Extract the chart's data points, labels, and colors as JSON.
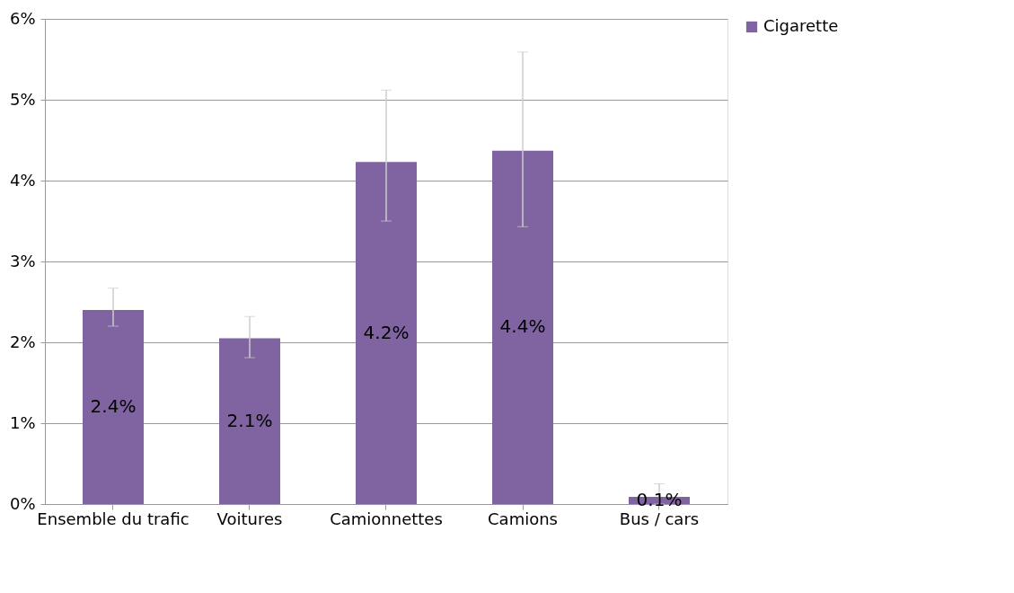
{
  "chart_data": {
    "type": "bar",
    "categories": [
      "Ensemble du trafic",
      "Voitures",
      "Camionnettes",
      "Camions",
      "Bus / cars"
    ],
    "series": [
      {
        "name": "Cigarette",
        "color": "#8064a2",
        "values": [
          2.4,
          2.05,
          4.23,
          4.37,
          0.09
        ],
        "errors": [
          [
            2.2,
            2.67
          ],
          [
            1.81,
            2.32
          ],
          [
            3.5,
            5.12
          ],
          [
            3.43,
            5.59
          ],
          [
            0.0,
            0.25
          ]
        ]
      }
    ],
    "value_labels": [
      "2.4%",
      "2.1%",
      "4.2%",
      "4.4%",
      "0.1%"
    ],
    "ylim": [
      0,
      6
    ],
    "yticks": [
      {
        "value": 0,
        "label": "0%"
      },
      {
        "value": 1,
        "label": "1%"
      },
      {
        "value": 2,
        "label": "2%"
      },
      {
        "value": 3,
        "label": "3%"
      },
      {
        "value": 4,
        "label": "4%"
      },
      {
        "value": 5,
        "label": "5%"
      },
      {
        "value": 6,
        "label": "6%"
      }
    ],
    "grid": "y",
    "legend": "right"
  }
}
